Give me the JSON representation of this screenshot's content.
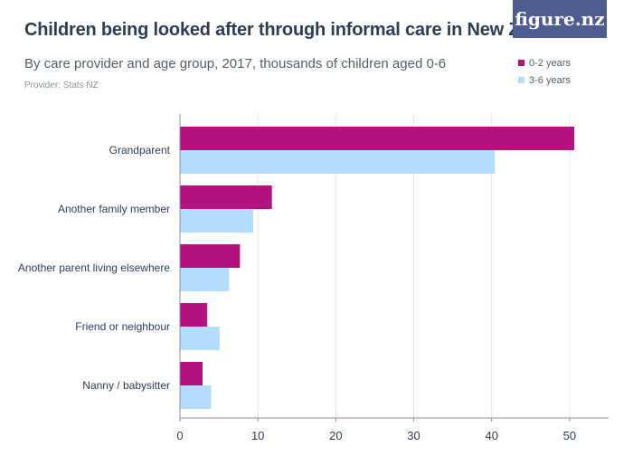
{
  "header": {
    "title": "Children being looked after through informal care in New Zealand",
    "subtitle": "By care provider and age group, 2017, thousands of children aged 0-6",
    "provider": "Provider: Stats NZ",
    "logo_text": "figure.nz"
  },
  "colors": {
    "series_0_2": "#b5117f",
    "series_3_6": "#b3dcff",
    "grid": "#e3e5e8",
    "axis_text": "#2c3e57",
    "logo_bg": "#4f5c8f"
  },
  "chart_data": {
    "type": "bar",
    "orientation": "horizontal",
    "title": "Children being looked after through informal care in New Zealand",
    "xlabel": "",
    "ylabel": "",
    "xlim": [
      0,
      55
    ],
    "x_ticks": [
      0,
      10,
      20,
      30,
      40,
      50
    ],
    "grid": true,
    "legend_position": "top-right",
    "categories": [
      "Grandparent",
      "Another family member",
      "Another parent living elsewhere",
      "Friend or neighbour",
      "Nanny / babysitter"
    ],
    "series": [
      {
        "name": "0-2 years",
        "color": "#b5117f",
        "values": [
          50.6,
          11.8,
          7.7,
          3.5,
          2.9
        ]
      },
      {
        "name": "3-6 years",
        "color": "#b3dcff",
        "values": [
          40.4,
          9.4,
          6.3,
          5.1,
          4.0
        ]
      }
    ]
  }
}
